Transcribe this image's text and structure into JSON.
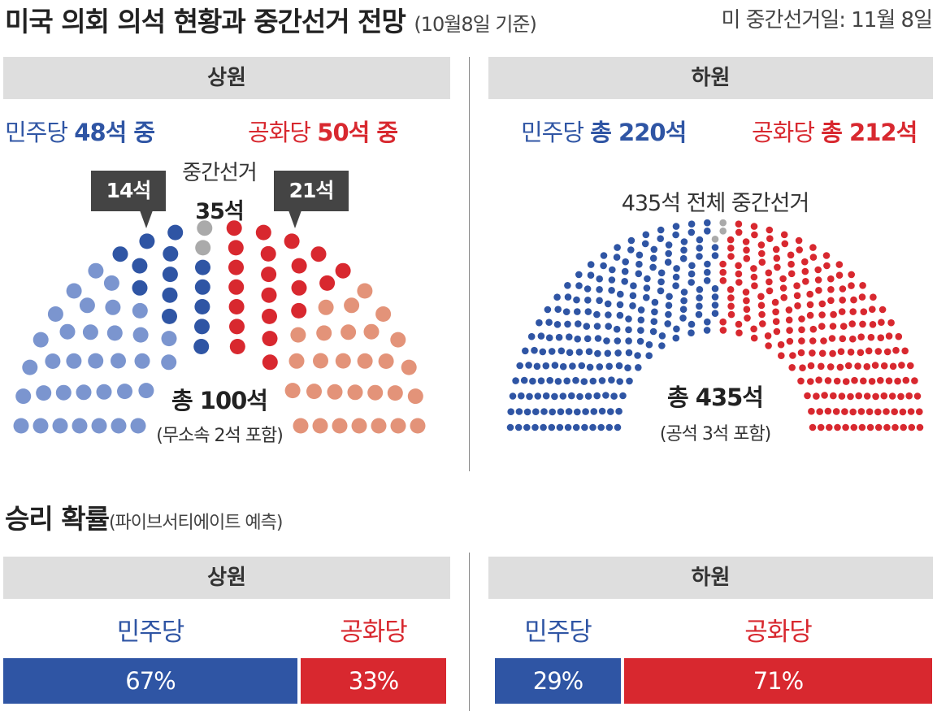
{
  "header": {
    "title": "미국 의회 의석 현황과 중간선거 전망",
    "subtitle": "(10월8일 기준)",
    "election_day": "미 중간선거일: 11월 8일"
  },
  "colors": {
    "dem_dark": "#2f55a4",
    "dem_light": "#7b95cf",
    "rep_dark": "#d8282f",
    "rep_light": "#e39379",
    "independent": "#aaaaaa",
    "header_bg": "#dedede",
    "callout_bg": "#444444"
  },
  "senate": {
    "header": "상원",
    "dem_prefix": "민주당 ",
    "dem_value": "48석 중",
    "rep_prefix": "공화당 ",
    "rep_value": "50석 중",
    "dem_callout": "14석",
    "rep_callout": "21석",
    "midterm_label": "중간선거",
    "midterm_value": "35석",
    "total_label": "총 100석",
    "total_note": "(무소속 2석 포함)"
  },
  "house": {
    "header": "하원",
    "dem_prefix": "민주당 ",
    "dem_value": "총 220석",
    "rep_prefix": "공화당 ",
    "rep_value": "총 212석",
    "midterm_label": "435석 전체 중간선거",
    "total_label": "총 435석",
    "total_note": "(공석 3석 포함)"
  },
  "probability": {
    "title": "승리 확률",
    "subtitle": "(파이브서티에이트 예측)",
    "senate_header": "상원",
    "house_header": "하원",
    "senate_dem_label": "민주당",
    "senate_rep_label": "공화당",
    "house_dem_label": "민주당",
    "house_rep_label": "공화당",
    "senate_dem_text": "67%",
    "senate_rep_text": "33%",
    "house_dem_text": "29%",
    "house_rep_text": "71%"
  },
  "chart_data": [
    {
      "type": "parliament",
      "chamber": "상원",
      "total": 100,
      "seats": [
        {
          "group": "dem_not_up",
          "count": 34
        },
        {
          "group": "dem_up",
          "count": 14
        },
        {
          "group": "independent",
          "count": 2
        },
        {
          "group": "rep_up",
          "count": 21
        },
        {
          "group": "rep_not_up",
          "count": 29
        }
      ]
    },
    {
      "type": "parliament",
      "chamber": "하원",
      "total": 435,
      "seats": [
        {
          "group": "dem",
          "count": 220
        },
        {
          "group": "vacant",
          "count": 3
        },
        {
          "group": "rep",
          "count": 212
        }
      ]
    },
    {
      "type": "bar",
      "chamber": "상원",
      "categories": [
        "민주당",
        "공화당"
      ],
      "values": [
        67,
        33
      ]
    },
    {
      "type": "bar",
      "chamber": "하원",
      "categories": [
        "민주당",
        "공화당"
      ],
      "values": [
        29,
        71
      ]
    }
  ]
}
